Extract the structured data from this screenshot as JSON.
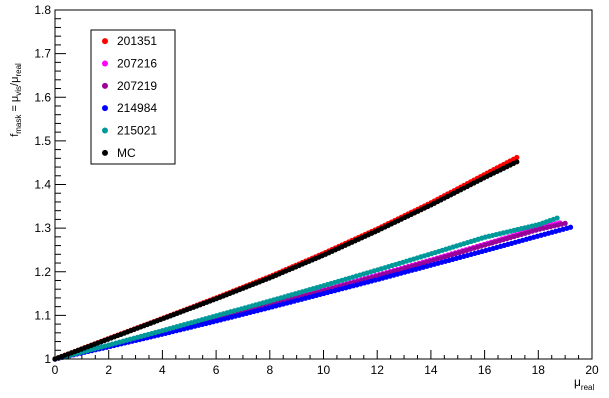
{
  "chart_data": {
    "type": "scatter",
    "title": "",
    "xlabel_main": "μ",
    "xlabel_sub": "real",
    "ylabel_parts": {
      "f": "f",
      "f_sub": "mask",
      "eq": " = μ",
      "vis_sub": "vis",
      "slash": "/μ",
      "real_sub": "real"
    },
    "xlim": [
      0,
      20
    ],
    "ylim": [
      1.0,
      1.8
    ],
    "xticks": [
      0,
      2,
      4,
      6,
      8,
      10,
      12,
      14,
      16,
      18,
      20
    ],
    "xtick_labels": [
      "0",
      "2",
      "4",
      "6",
      "8",
      "10",
      "12",
      "14",
      "16",
      "18",
      "20"
    ],
    "yticks": [
      1.0,
      1.1,
      1.2,
      1.3,
      1.4,
      1.5,
      1.6,
      1.7,
      1.8
    ],
    "ytick_labels": [
      "1",
      "1.1",
      "1.2",
      "1.3",
      "1.4",
      "1.5",
      "1.6",
      "1.7",
      "1.8"
    ],
    "grid": false,
    "legend_position": "top-left",
    "series": [
      {
        "name": "201351",
        "color": "#ff0000",
        "x": [
          0,
          2,
          4,
          6,
          8,
          10,
          12,
          14,
          16,
          17.2
        ],
        "y": [
          1.0,
          1.047,
          1.093,
          1.14,
          1.189,
          1.242,
          1.298,
          1.358,
          1.423,
          1.462
        ]
      },
      {
        "name": "207216",
        "color": "#ff00ff",
        "x": [
          0,
          2,
          4,
          6,
          8,
          10,
          12,
          14,
          16,
          18,
          18.8
        ],
        "y": [
          1.0,
          1.03,
          1.061,
          1.093,
          1.125,
          1.158,
          1.192,
          1.227,
          1.263,
          1.3,
          1.312
        ]
      },
      {
        "name": "207219",
        "color": "#990099",
        "x": [
          0,
          2,
          4,
          6,
          8,
          10,
          12,
          14,
          16,
          18,
          19.0
        ],
        "y": [
          1.0,
          1.03,
          1.06,
          1.091,
          1.123,
          1.156,
          1.19,
          1.225,
          1.261,
          1.297,
          1.311
        ]
      },
      {
        "name": "214984",
        "color": "#0000ff",
        "x": [
          0,
          2,
          4,
          6,
          8,
          10,
          12,
          14,
          16,
          18,
          19.2
        ],
        "y": [
          1.0,
          1.028,
          1.057,
          1.087,
          1.118,
          1.15,
          1.182,
          1.215,
          1.248,
          1.282,
          1.302
        ]
      },
      {
        "name": "215021",
        "color": "#009999",
        "x": [
          0,
          2,
          4,
          6,
          8,
          10,
          12,
          14,
          16,
          18,
          18.7
        ],
        "y": [
          1.0,
          1.032,
          1.065,
          1.099,
          1.133,
          1.168,
          1.204,
          1.241,
          1.279,
          1.308,
          1.323
        ]
      },
      {
        "name": "MC",
        "color": "#000000",
        "x": [
          0,
          2,
          4,
          6,
          8,
          10,
          12,
          14,
          16,
          17.2
        ],
        "y": [
          1.0,
          1.046,
          1.092,
          1.138,
          1.186,
          1.238,
          1.294,
          1.353,
          1.416,
          1.452
        ]
      }
    ]
  }
}
